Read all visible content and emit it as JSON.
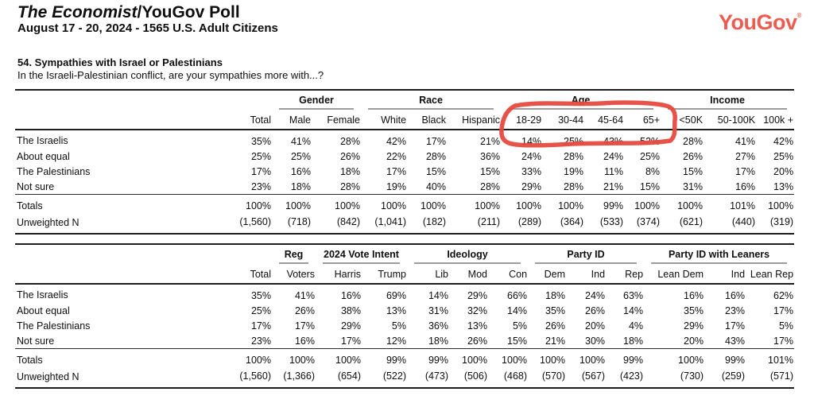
{
  "page": {
    "title": {
      "italic": "The Economist",
      "regular": "/YouGov Poll"
    },
    "subtitle": "August 17 - 20, 2024 - 1565 U.S. Adult Citizens",
    "logo": {
      "text": "YouGov",
      "mark": "®",
      "color": "#f05b4f"
    }
  },
  "question": {
    "heading": "54. Sympathies with Israel or Palestinians",
    "text": "In the Israeli-Palestinian conflict, are your sympathies more with...?"
  },
  "annotation": {
    "type": "hand-drawn red marker box",
    "color": "#e64a3e",
    "highlights": "Age columns 18-29 / 30-44 / 45-64 / 65+ and The Israelis row values 14% / 25% / 43% / 52%"
  },
  "tables": [
    {
      "id": "demographics",
      "groups": [
        {
          "label": "",
          "span": 2,
          "underline": false
        },
        {
          "label": "Gender",
          "span": 2,
          "underline": true
        },
        {
          "label": "Race",
          "span": 3,
          "underline": true
        },
        {
          "label": "Age",
          "span": 4,
          "underline": true
        },
        {
          "label": "Income",
          "span": 3,
          "underline": true
        }
      ],
      "columns": [
        "",
        "Total",
        "Male",
        "Female",
        "White",
        "Black",
        "Hispanic",
        "18-29",
        "30-44",
        "45-64",
        "65+",
        "<50K",
        "50-100K",
        "100k +"
      ],
      "rows": [
        [
          "The Israelis",
          "35%",
          "41%",
          "28%",
          "42%",
          "17%",
          "21%",
          "14%",
          "25%",
          "43%",
          "52%",
          "28%",
          "41%",
          "42%"
        ],
        [
          "About equal",
          "25%",
          "25%",
          "26%",
          "22%",
          "28%",
          "36%",
          "24%",
          "28%",
          "24%",
          "25%",
          "26%",
          "27%",
          "25%"
        ],
        [
          "The Palestinians",
          "17%",
          "16%",
          "18%",
          "17%",
          "15%",
          "15%",
          "33%",
          "19%",
          "11%",
          "8%",
          "15%",
          "17%",
          "20%"
        ],
        [
          "Not sure",
          "23%",
          "18%",
          "28%",
          "19%",
          "40%",
          "28%",
          "29%",
          "28%",
          "21%",
          "15%",
          "31%",
          "16%",
          "13%"
        ]
      ],
      "summary_rows": [
        [
          "Totals",
          "100%",
          "100%",
          "100%",
          "100%",
          "100%",
          "100%",
          "100%",
          "100%",
          "99%",
          "100%",
          "100%",
          "101%",
          "100%"
        ],
        [
          "Unweighted N",
          "(1,560)",
          "(718)",
          "(842)",
          "(1,041)",
          "(182)",
          "(211)",
          "(289)",
          "(364)",
          "(533)",
          "(374)",
          "(621)",
          "(440)",
          "(319)"
        ]
      ]
    },
    {
      "id": "politics",
      "groups": [
        {
          "label": "",
          "span": 2,
          "underline": false
        },
        {
          "label": "Reg",
          "span": 1,
          "underline": true
        },
        {
          "label": "2024 Vote Intent",
          "span": 2,
          "underline": true
        },
        {
          "label": "Ideology",
          "span": 3,
          "underline": true
        },
        {
          "label": "Party ID",
          "span": 3,
          "underline": true
        },
        {
          "label": "Party ID with Leaners",
          "span": 3,
          "underline": true
        }
      ],
      "columns": [
        "",
        "Total",
        "Voters",
        "Harris",
        "Trump",
        "Lib",
        "Mod",
        "Con",
        "Dem",
        "Ind",
        "Rep",
        "Lean Dem",
        "Ind",
        "Lean Rep"
      ],
      "rows": [
        [
          "The Israelis",
          "35%",
          "41%",
          "16%",
          "69%",
          "14%",
          "29%",
          "66%",
          "18%",
          "24%",
          "63%",
          "16%",
          "16%",
          "62%"
        ],
        [
          "About equal",
          "25%",
          "26%",
          "38%",
          "13%",
          "31%",
          "32%",
          "14%",
          "35%",
          "26%",
          "14%",
          "35%",
          "23%",
          "17%"
        ],
        [
          "The Palestinians",
          "17%",
          "17%",
          "29%",
          "5%",
          "36%",
          "13%",
          "5%",
          "26%",
          "20%",
          "4%",
          "29%",
          "17%",
          "5%"
        ],
        [
          "Not sure",
          "23%",
          "16%",
          "17%",
          "12%",
          "18%",
          "26%",
          "15%",
          "21%",
          "30%",
          "18%",
          "20%",
          "43%",
          "17%"
        ]
      ],
      "summary_rows": [
        [
          "Totals",
          "100%",
          "100%",
          "100%",
          "99%",
          "99%",
          "100%",
          "100%",
          "100%",
          "100%",
          "99%",
          "100%",
          "99%",
          "101%"
        ],
        [
          "Unweighted N",
          "(1,560)",
          "(1,366)",
          "(654)",
          "(522)",
          "(473)",
          "(506)",
          "(468)",
          "(570)",
          "(567)",
          "(423)",
          "(730)",
          "(259)",
          "(571)"
        ]
      ]
    }
  ]
}
